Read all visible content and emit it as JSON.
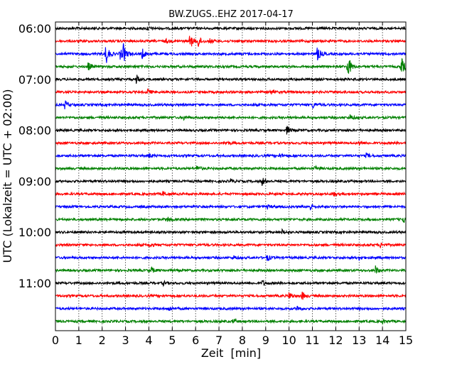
{
  "chart_data": {
    "type": "line",
    "title": "BW.ZUGS..EHZ 2017-04-17",
    "xlabel": "Zeit  [min]",
    "ylabel": "UTC (Lokalzeit = UTC + 02:00)",
    "xlim": [
      0,
      15
    ],
    "x_ticks": [
      "0",
      "1",
      "2",
      "3",
      "4",
      "5",
      "6",
      "7",
      "8",
      "9",
      "10",
      "11",
      "12",
      "13",
      "14",
      "15"
    ],
    "grid": "vertical dotted at each minute",
    "trace_minutes": 15,
    "trace_start": "06:00",
    "y_tick_labels": [
      "06:00",
      "07:00",
      "08:00",
      "09:00",
      "10:00",
      "11:00"
    ],
    "colors": [
      "#000000",
      "#ff0000",
      "#0000ff",
      "#008000"
    ],
    "traces": [
      {
        "start": "06:00",
        "events": [
          {
            "t": 3.9,
            "amp": 3
          }
        ]
      },
      {
        "start": "06:15",
        "events": [
          {
            "t": 4.7,
            "amp": 3
          },
          {
            "t": 5.75,
            "amp": 12
          },
          {
            "t": 6.1,
            "amp": 9
          },
          {
            "t": 6.6,
            "amp": 3
          }
        ]
      },
      {
        "start": "06:30",
        "events": [
          {
            "t": 2.15,
            "amp": 16
          },
          {
            "t": 2.75,
            "amp": 9
          },
          {
            "t": 2.9,
            "amp": 12
          },
          {
            "t": 3.7,
            "amp": 8
          },
          {
            "t": 11.2,
            "amp": 11
          }
        ]
      },
      {
        "start": "06:45",
        "events": [
          {
            "t": 1.4,
            "amp": 6
          },
          {
            "t": 12.5,
            "amp": 20
          },
          {
            "t": 14.8,
            "amp": 14
          }
        ]
      },
      {
        "start": "07:00",
        "events": [
          {
            "t": 3.45,
            "amp": 7
          }
        ]
      },
      {
        "start": "07:15",
        "events": [
          {
            "t": 3.95,
            "amp": 4
          },
          {
            "t": 9.2,
            "amp": 3
          }
        ]
      },
      {
        "start": "07:30",
        "events": [
          {
            "t": 0.4,
            "amp": 6
          },
          {
            "t": 11.0,
            "amp": 5
          }
        ]
      },
      {
        "start": "07:45",
        "events": [
          {
            "t": 5.5,
            "amp": 3
          },
          {
            "t": 12.6,
            "amp": 4
          }
        ]
      },
      {
        "start": "08:00",
        "events": [
          {
            "t": 9.9,
            "amp": 6
          }
        ]
      },
      {
        "start": "08:15",
        "events": [
          {
            "t": 7.3,
            "amp": 3
          },
          {
            "t": 13.0,
            "amp": 3
          }
        ]
      },
      {
        "start": "08:30",
        "events": [
          {
            "t": 4.0,
            "amp": 3
          },
          {
            "t": 9.6,
            "amp": 3
          },
          {
            "t": 13.3,
            "amp": 3
          }
        ]
      },
      {
        "start": "08:45",
        "events": [
          {
            "t": 6.05,
            "amp": 5
          },
          {
            "t": 11.1,
            "amp": 3
          }
        ]
      },
      {
        "start": "09:00",
        "events": [
          {
            "t": 7.5,
            "amp": 3
          },
          {
            "t": 8.85,
            "amp": 6
          }
        ]
      },
      {
        "start": "09:15",
        "events": [
          {
            "t": 4.6,
            "amp": 3
          },
          {
            "t": 11.9,
            "amp": 3
          }
        ]
      },
      {
        "start": "09:30",
        "events": [
          {
            "t": 9.05,
            "amp": 3
          },
          {
            "t": 10.9,
            "amp": 5
          }
        ]
      },
      {
        "start": "09:45",
        "events": [
          {
            "t": 4.8,
            "amp": 4
          },
          {
            "t": 14.85,
            "amp": 6
          }
        ]
      },
      {
        "start": "10:00",
        "events": [
          {
            "t": 9.7,
            "amp": 3
          }
        ]
      },
      {
        "start": "10:15",
        "events": [
          {
            "t": 4.05,
            "amp": 3
          },
          {
            "t": 13.9,
            "amp": 3
          }
        ]
      },
      {
        "start": "10:30",
        "events": [
          {
            "t": 7.6,
            "amp": 3
          },
          {
            "t": 9.05,
            "amp": 5
          },
          {
            "t": 13.0,
            "amp": 3
          }
        ]
      },
      {
        "start": "10:45",
        "events": [
          {
            "t": 4.1,
            "amp": 4
          },
          {
            "t": 13.7,
            "amp": 6
          }
        ]
      },
      {
        "start": "11:00",
        "events": [
          {
            "t": 4.6,
            "amp": 3
          },
          {
            "t": 8.85,
            "amp": 4
          }
        ]
      },
      {
        "start": "11:15",
        "events": [
          {
            "t": 10.0,
            "amp": 6
          },
          {
            "t": 10.55,
            "amp": 6
          }
        ]
      },
      {
        "start": "11:30",
        "events": [
          {
            "t": 4.85,
            "amp": 4
          },
          {
            "t": 10.35,
            "amp": 4
          }
        ]
      },
      {
        "start": "11:45",
        "events": [
          {
            "t": 7.6,
            "amp": 3
          },
          {
            "t": 14.0,
            "amp": 3
          }
        ]
      }
    ]
  }
}
